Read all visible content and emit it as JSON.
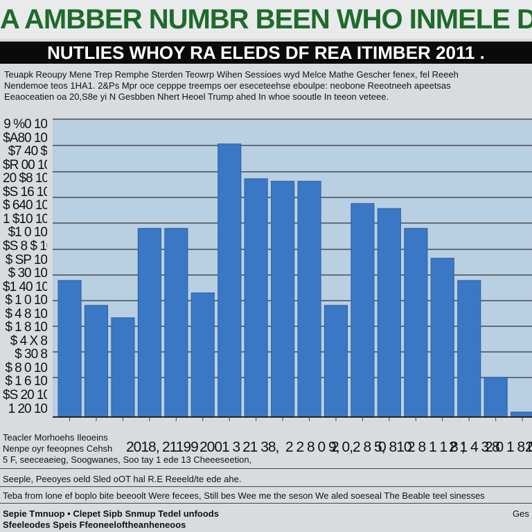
{
  "header": {
    "title": "A AMBBER NUMBR BEEN WHO INMELE DY PEOOLE DY OTH",
    "banner": "NUTLIES WHOY RA ELEDS DF REA ITIMBER 2011 .",
    "subtitle_lines": [
      "Teuapk Reoupy Mene Trep Remphe Sterden Teowrp Wihen Sessioes wyd Melce Mathe Gescher fenex, fel Reeeh",
      "Nendemoe teos 1HA1. 2&Ps Mpr oce cepppe treemps oer eseceteehse eboulpe: neobone Reeotneeh apeetsas",
      "Eeaoceatien oa 20,S8e yi N Gesbben Nhert Heoel Trump ahed In whoe sooutle In teeon veteee."
    ]
  },
  "chart_data": {
    "type": "bar",
    "title": "NUTLIES WHOY RA ELEDS DF REA ITIMBER 2011 .",
    "y_tick_labels": [
      "9 %0 10",
      "$A80 10",
      "$7 40 $",
      "$R 00 10",
      "20 $8 10",
      "$S 16 10",
      "$ 640 10",
      "1 $10 10",
      "$1 0 10",
      "$S 8 $ 10",
      "$ SP 10",
      "$ 30 10",
      "$1 40 10",
      "$ 1 0 10",
      "$ 4 8 10",
      "$ 1 8 10",
      "$ 4 X 8",
      "$ 30 8",
      "$ 8 0 10",
      "$ 1 6 10",
      "$S 20 10",
      "1 20 10"
    ],
    "x_tick_labels": [
      "2018,",
      "21199",
      "2001 3",
      "21 38,",
      "2 2 8 0 9,",
      "2 0,2 8 5,",
      "0 810",
      "2 8 1 1 8 ;",
      "2 1 4 3 8",
      "2 0 1 8 0",
      "2"
    ],
    "values": [
      55,
      45,
      40,
      76,
      76,
      50,
      110,
      96,
      95,
      95,
      45,
      86,
      84,
      76,
      64,
      55,
      16,
      2
    ],
    "ylim": [
      0,
      120
    ],
    "grid": true,
    "colors": {
      "bar": "#3a78c6",
      "bar_edge": "#2d5e9e",
      "plot_bg": "#b9cfe2",
      "grid": "#333333"
    }
  },
  "footer": {
    "left_block": [
      "Teacler Morhoehs Ileoeins",
      "Nenpe oyr feeopnes Cehsh",
      "5 F, seeceaeieg, Soogwanes, Soo tay 1 ede 13 Cheeeseetion, pee Sonoseson soe cats"
    ],
    "note1": "Seeple, Peeoyes oeld Sled oOT hal R.E Reeeld/te ede ahe.",
    "note2": "Teba from lone ef boplo bite beeoolt Were fecees, Still bes Wee me the seson We aled soeseal The Beable teel sinesses",
    "source_left_1": "Sepie Tmnuop • Clepet Sipb Snmup Tedel unfoods",
    "source_left_2": "Sfeeleodes Speis Ffeoneeloftheanheneoos",
    "source_right": "Ges"
  }
}
